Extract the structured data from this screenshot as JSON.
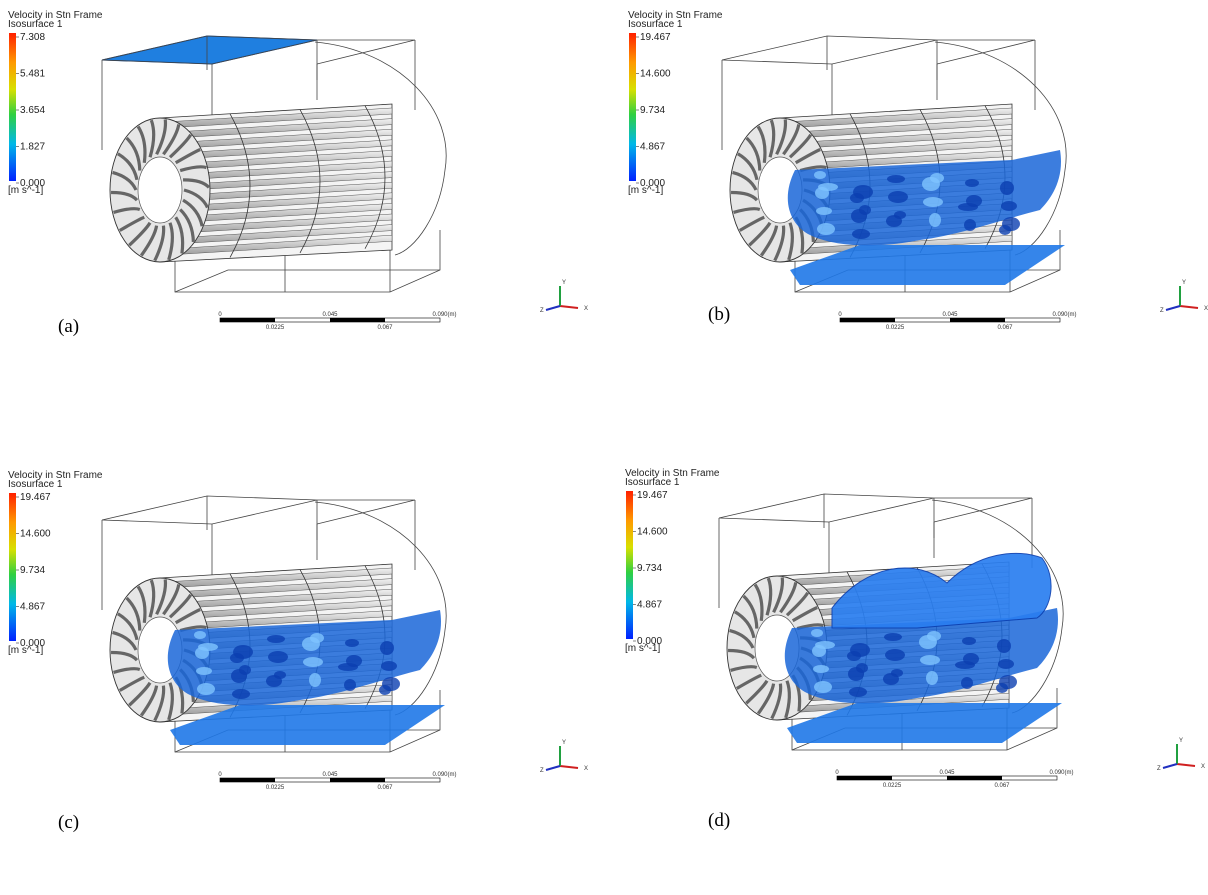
{
  "panels": [
    {
      "label": "(a)",
      "legend": {
        "title": "Velocity in Stn Frame",
        "subtitle": "Isosurface 1",
        "ticks": [
          "7.308",
          "5.481",
          "3.654",
          "1.827",
          "0.000"
        ],
        "unit": "[m s^-1]"
      }
    },
    {
      "label": "(b)",
      "legend": {
        "title": "Velocity in Stn Frame",
        "subtitle": "Isosurface 1",
        "ticks": [
          "19.467",
          "14.600",
          "9.734",
          "4.867",
          "0.000"
        ],
        "unit": "[m s^-1]"
      }
    },
    {
      "label": "(c)",
      "legend": {
        "title": "Velocity in Stn Frame",
        "subtitle": "Isosurface 1",
        "ticks": [
          "19.467",
          "14.600",
          "9.734",
          "4.867",
          "0.000"
        ],
        "unit": "[m s^-1]"
      }
    },
    {
      "label": "(d)",
      "legend": {
        "title": "Velocity in Stn Frame",
        "subtitle": "Isosurface 1",
        "ticks": [
          "19.467",
          "14.600",
          "9.734",
          "4.867",
          "0.000"
        ],
        "unit": "[m s^-1]"
      }
    }
  ],
  "scale_bar": {
    "top": [
      "0",
      "0.045",
      "0.090",
      "(m)"
    ],
    "bottom": [
      "0.0225",
      "0.067"
    ]
  },
  "triad": [
    "X",
    "Y",
    "Z"
  ]
}
